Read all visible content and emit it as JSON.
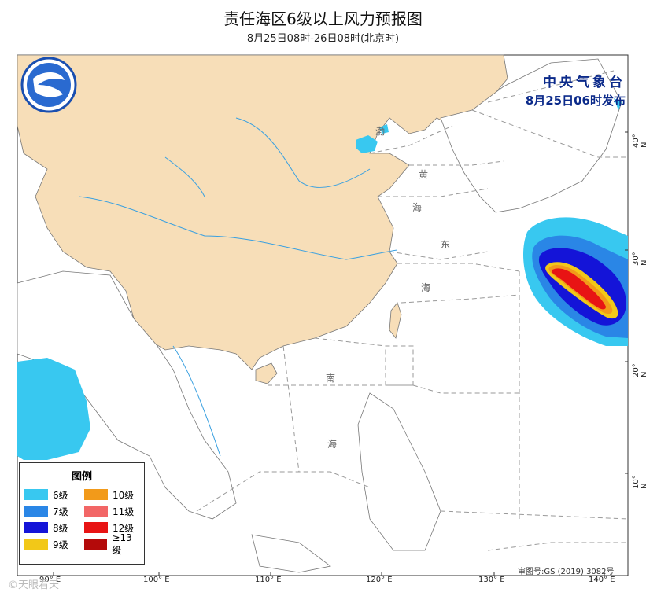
{
  "title": "责任海区6级以上风力预报图",
  "subtitle": "8月25日08时-26日08时(北京时)",
  "agency": {
    "name": "中央气象台",
    "issued": "8月25日06时发布"
  },
  "legend": {
    "title": "图例",
    "items": [
      {
        "label": "6级",
        "color": "#38c8f0"
      },
      {
        "label": "10级",
        "color": "#f29a1a"
      },
      {
        "label": "7级",
        "color": "#2a86e6"
      },
      {
        "label": "11级",
        "color": "#f26666"
      },
      {
        "label": "8级",
        "color": "#1414d8"
      },
      {
        "label": "12级",
        "color": "#e81414"
      },
      {
        "label": "9级",
        "color": "#f2c818"
      },
      {
        "label": "≥13级",
        "color": "#b40a0a"
      }
    ]
  },
  "lon_labels": [
    "90° E",
    "100° E",
    "110° E",
    "120° E",
    "130° E",
    "140° E"
  ],
  "lat_labels": [
    "10° N",
    "20° N",
    "30° N",
    "40° N"
  ],
  "sea_labels": [
    "渤",
    "黄",
    "海",
    "东",
    "海",
    "南",
    "海"
  ],
  "approval": "审图号:GS (2019) 3082号",
  "watermark": "©天眼看天"
}
